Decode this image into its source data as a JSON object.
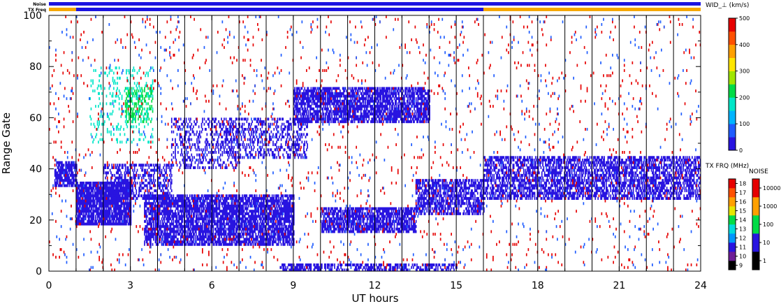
{
  "chart_data": {
    "type": "heatmap",
    "xlabel": "UT hours",
    "ylabel": "Range Gate",
    "xlim": [
      0,
      24
    ],
    "ylim": [
      0,
      100
    ],
    "x_ticks": [
      "0",
      "3",
      "6",
      "9",
      "12",
      "15",
      "18",
      "21",
      "24"
    ],
    "y_ticks": [
      "0",
      "20",
      "40",
      "60",
      "80",
      "100"
    ],
    "hour_gridlines": true,
    "status_bars": [
      {
        "label": "Noise",
        "segments": [
          {
            "from": 0,
            "to": 24,
            "color": "#1c14e0"
          }
        ]
      },
      {
        "label": "TX Freq",
        "segments": [
          {
            "from": 0,
            "to": 1,
            "color": "#f5a800"
          },
          {
            "from": 1,
            "to": 16,
            "color": "#1c14e0"
          },
          {
            "from": 16,
            "to": 24,
            "color": "#f5a800"
          }
        ]
      }
    ],
    "colorbars": {
      "width": {
        "title": "WID_⊥ (km/s)",
        "min": 0,
        "max": 500,
        "ticks": [
          "0",
          "100",
          "200",
          "300",
          "400",
          "500"
        ],
        "colors": [
          "#2814e0",
          "#1f5cff",
          "#00b4ff",
          "#00e6c8",
          "#00dc46",
          "#a0e600",
          "#ffe600",
          "#ffa000",
          "#ff5000",
          "#e60000"
        ]
      },
      "tx_freq": {
        "title": "TX FRQ (MHz)",
        "ticks": [
          "9",
          "10",
          "11",
          "12",
          "13",
          "14",
          "15",
          "16",
          "17",
          "18"
        ],
        "colors": [
          "#000000",
          "#6e1e96",
          "#2814e0",
          "#0096ff",
          "#00dcdc",
          "#00dc46",
          "#e6e600",
          "#ffa000",
          "#ff5000",
          "#e60000"
        ]
      },
      "noise": {
        "title": "NOISE",
        "ticks": [
          "1",
          "10",
          "100",
          "1000",
          "10000"
        ],
        "colors": [
          "#000000",
          "#2814e0",
          "#00dc46",
          "#ffa000",
          "#e60000"
        ]
      }
    },
    "regions": [
      {
        "x": [
          0.2,
          1.0
        ],
        "y": [
          33,
          43
        ],
        "density": 0.75,
        "color": "#2814e0"
      },
      {
        "x": [
          1.0,
          3.0
        ],
        "y": [
          18,
          35
        ],
        "density": 0.85,
        "color": "#2814e0"
      },
      {
        "x": [
          2.0,
          4.5
        ],
        "y": [
          28,
          42
        ],
        "density": 0.45,
        "color": "#2814e0"
      },
      {
        "x": [
          3.5,
          9.0
        ],
        "y": [
          10,
          30
        ],
        "density": 0.75,
        "color": "#2814e0"
      },
      {
        "x": [
          4.5,
          7.0
        ],
        "y": [
          40,
          60
        ],
        "density": 0.28,
        "color": "#2814e0"
      },
      {
        "x": [
          6.5,
          9.5
        ],
        "y": [
          44,
          60
        ],
        "density": 0.35,
        "color": "#2814e0"
      },
      {
        "x": [
          9.0,
          14.0
        ],
        "y": [
          58,
          72
        ],
        "density": 0.72,
        "color": "#2814e0"
      },
      {
        "x": [
          10.0,
          13.5
        ],
        "y": [
          15,
          25
        ],
        "density": 0.72,
        "color": "#2814e0"
      },
      {
        "x": [
          13.5,
          16.0
        ],
        "y": [
          22,
          36
        ],
        "density": 0.62,
        "color": "#2814e0"
      },
      {
        "x": [
          16.0,
          24.0
        ],
        "y": [
          28,
          45
        ],
        "density": 0.58,
        "color": "#2814e0"
      },
      {
        "x": [
          8.5,
          15.0
        ],
        "y": [
          0,
          3
        ],
        "density": 0.5,
        "color": "#2814e0"
      },
      {
        "x": [
          2.8,
          3.8
        ],
        "y": [
          58,
          72
        ],
        "density": 0.4,
        "color": "#00dc46"
      },
      {
        "x": [
          1.5,
          3.8
        ],
        "y": [
          50,
          80
        ],
        "density": 0.12,
        "color": "#00e6c8"
      },
      {
        "x": [
          0.0,
          24.0
        ],
        "y": [
          0,
          100
        ],
        "density": 0.018,
        "color": "#e60000"
      },
      {
        "x": [
          0.0,
          24.0
        ],
        "y": [
          0,
          100
        ],
        "density": 0.012,
        "color": "#1f5cff"
      }
    ]
  }
}
